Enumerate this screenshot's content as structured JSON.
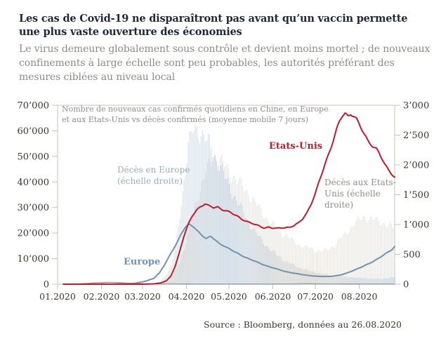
{
  "header": {
    "title": "Les cas de Covid-19 ne disparaîtront pas avant qu’un vaccin permette une plus vaste ouverture des économies",
    "subtitle": "Le virus demeure globalement sous contrôle et devient moins mortel ; de nouveaux confinements à large échelle sont peu probables, les autorités préférant des mesures ciblées au niveau local"
  },
  "source": "Source : Bloomberg, données au 26.08.2020",
  "chart_data": {
    "type": "combo",
    "note": "Nombre de nouveaux cas confirmés quotidiens en Chine, en Europe et aux Etats-Unis vs décès confirmés (moyenne mobile 7 jours)",
    "frame_color": "#c9c0b4",
    "x_axis": {
      "unit": "days since 01.01.2020, data until 26.08.2020",
      "range": [
        0,
        238
      ],
      "tick_days": [
        0,
        31,
        60,
        91,
        121,
        152,
        182,
        213
      ],
      "tick_labels": [
        "01.2020",
        "02.2020",
        "03.2020",
        "04.2020",
        "05.2020",
        "06.2020",
        "07.2020",
        "08.2020"
      ]
    },
    "left_axis": {
      "title": "nouveaux cas confirmés quotidiens",
      "range": [
        0,
        70000
      ],
      "tick_values": [
        0,
        10000,
        20000,
        30000,
        40000,
        50000,
        60000,
        70000
      ],
      "tick_labels": [
        "0",
        "10’000",
        "20’000",
        "30’000",
        "40’000",
        "50’000",
        "60’000",
        "70’000"
      ]
    },
    "right_axis": {
      "title": "décès confirmés (échelle droite)",
      "range": [
        0,
        3000
      ],
      "tick_values": [
        0,
        500,
        1000,
        1500,
        2000,
        2500,
        3000
      ],
      "tick_labels": [
        "0",
        "500",
        "1’000",
        "1’500",
        "2’000",
        "2’500",
        "3’000"
      ]
    },
    "annotations": {
      "us_line": "Etats-Unis",
      "europe_line": "Europe",
      "europe_deaths": "Décès en Europe (échelle droite)",
      "us_deaths": "Décès aux Etats-Unis (échelle droite)"
    },
    "series": [
      {
        "id": "us_deaths_bars",
        "name": "Décès aux Etats-Unis",
        "type": "bar",
        "axis": "right",
        "color": "#e3e0d9",
        "points": [
          [
            66,
            0
          ],
          [
            74,
            15
          ],
          [
            78,
            60
          ],
          [
            82,
            160
          ],
          [
            86,
            350
          ],
          [
            90,
            620
          ],
          [
            93,
            900
          ],
          [
            96,
            1200
          ],
          [
            99,
            1450
          ],
          [
            102,
            1680
          ],
          [
            105,
            1860
          ],
          [
            108,
            2030
          ],
          [
            111,
            2150
          ],
          [
            114,
            2100
          ],
          [
            117,
            2010
          ],
          [
            120,
            1920
          ],
          [
            124,
            1810
          ],
          [
            128,
            1720
          ],
          [
            132,
            1610
          ],
          [
            136,
            1490
          ],
          [
            140,
            1360
          ],
          [
            144,
            1230
          ],
          [
            148,
            1110
          ],
          [
            152,
            1000
          ],
          [
            156,
            915
          ],
          [
            160,
            840
          ],
          [
            164,
            770
          ],
          [
            168,
            705
          ],
          [
            172,
            650
          ],
          [
            176,
            615
          ],
          [
            180,
            585
          ],
          [
            184,
            560
          ],
          [
            188,
            555
          ],
          [
            192,
            590
          ],
          [
            196,
            665
          ],
          [
            200,
            760
          ],
          [
            204,
            860
          ],
          [
            208,
            965
          ],
          [
            212,
            1060
          ],
          [
            216,
            1120
          ],
          [
            220,
            1110
          ],
          [
            224,
            1080
          ],
          [
            228,
            1045
          ],
          [
            232,
            1005
          ],
          [
            236,
            965
          ],
          [
            238,
            945
          ]
        ]
      },
      {
        "id": "europe_deaths_bars",
        "name": "Décès en Europe",
        "type": "bar",
        "axis": "right",
        "color": "#cdd8e1",
        "points": [
          [
            60,
            0
          ],
          [
            68,
            10
          ],
          [
            72,
            40
          ],
          [
            76,
            130
          ],
          [
            80,
            320
          ],
          [
            83,
            620
          ],
          [
            86,
            1150
          ],
          [
            89,
            1750
          ],
          [
            92,
            2300
          ],
          [
            95,
            2560
          ],
          [
            98,
            2600
          ],
          [
            101,
            2540
          ],
          [
            104,
            2440
          ],
          [
            107,
            2330
          ],
          [
            110,
            2190
          ],
          [
            113,
            2040
          ],
          [
            116,
            1890
          ],
          [
            119,
            1740
          ],
          [
            122,
            1590
          ],
          [
            126,
            1410
          ],
          [
            130,
            1240
          ],
          [
            134,
            1070
          ],
          [
            138,
            920
          ],
          [
            142,
            790
          ],
          [
            146,
            680
          ],
          [
            150,
            580
          ],
          [
            154,
            500
          ],
          [
            158,
            430
          ],
          [
            162,
            375
          ],
          [
            166,
            325
          ],
          [
            170,
            285
          ],
          [
            174,
            250
          ],
          [
            178,
            220
          ],
          [
            182,
            198
          ],
          [
            186,
            178
          ],
          [
            190,
            162
          ],
          [
            194,
            148
          ],
          [
            198,
            136
          ],
          [
            202,
            126
          ],
          [
            206,
            117
          ],
          [
            210,
            110
          ],
          [
            214,
            103
          ],
          [
            218,
            98
          ],
          [
            222,
            94
          ],
          [
            226,
            92
          ],
          [
            230,
            95
          ],
          [
            234,
            103
          ],
          [
            238,
            118
          ]
        ]
      },
      {
        "id": "china_cases",
        "name": "Chine",
        "type": "line",
        "axis": "left",
        "color": "#8f9aa4",
        "points": [
          [
            4,
            0
          ],
          [
            15,
            100
          ],
          [
            20,
            250
          ],
          [
            25,
            450
          ],
          [
            30,
            600
          ],
          [
            36,
            700
          ],
          [
            42,
            650
          ],
          [
            48,
            450
          ],
          [
            54,
            280
          ],
          [
            60,
            160
          ],
          [
            70,
            80
          ],
          [
            80,
            50
          ],
          [
            95,
            30
          ],
          [
            120,
            20
          ],
          [
            150,
            25
          ],
          [
            165,
            60
          ],
          [
            172,
            120
          ],
          [
            178,
            150
          ],
          [
            184,
            90
          ],
          [
            195,
            40
          ],
          [
            210,
            30
          ],
          [
            225,
            60
          ],
          [
            238,
            50
          ]
        ]
      },
      {
        "id": "europe_cases",
        "name": "Europe",
        "type": "line",
        "axis": "left",
        "color": "#7292ae",
        "points": [
          [
            4,
            0
          ],
          [
            25,
            0
          ],
          [
            40,
            50
          ],
          [
            50,
            200
          ],
          [
            55,
            400
          ],
          [
            60,
            900
          ],
          [
            64,
            1500
          ],
          [
            68,
            2300
          ],
          [
            72,
            4500
          ],
          [
            76,
            8000
          ],
          [
            80,
            12000
          ],
          [
            84,
            16000
          ],
          [
            87,
            19500
          ],
          [
            90,
            22200
          ],
          [
            93,
            23200
          ],
          [
            96,
            22400
          ],
          [
            99,
            20800
          ],
          [
            102,
            19200
          ],
          [
            105,
            17800
          ],
          [
            108,
            18600
          ],
          [
            111,
            17400
          ],
          [
            114,
            16000
          ],
          [
            117,
            15200
          ],
          [
            120,
            14200
          ],
          [
            124,
            12900
          ],
          [
            128,
            11800
          ],
          [
            132,
            10700
          ],
          [
            136,
            9700
          ],
          [
            140,
            8800
          ],
          [
            144,
            7900
          ],
          [
            148,
            7100
          ],
          [
            152,
            6400
          ],
          [
            156,
            5700
          ],
          [
            160,
            5100
          ],
          [
            164,
            4600
          ],
          [
            168,
            4200
          ],
          [
            172,
            3800
          ],
          [
            176,
            3500
          ],
          [
            180,
            3250
          ],
          [
            184,
            3050
          ],
          [
            188,
            3000
          ],
          [
            192,
            3050
          ],
          [
            196,
            3250
          ],
          [
            200,
            3600
          ],
          [
            204,
            4300
          ],
          [
            208,
            5200
          ],
          [
            212,
            6100
          ],
          [
            216,
            7000
          ],
          [
            220,
            8100
          ],
          [
            224,
            9300
          ],
          [
            228,
            10600
          ],
          [
            232,
            12000
          ],
          [
            236,
            13500
          ],
          [
            238,
            14800
          ]
        ]
      },
      {
        "id": "us_cases",
        "name": "Etats-Unis",
        "type": "line",
        "axis": "left",
        "color": "#c01a2c",
        "points": [
          [
            4,
            0
          ],
          [
            55,
            0
          ],
          [
            62,
            20
          ],
          [
            68,
            120
          ],
          [
            73,
            500
          ],
          [
            77,
            1400
          ],
          [
            80,
            3200
          ],
          [
            83,
            7000
          ],
          [
            86,
            12500
          ],
          [
            89,
            18500
          ],
          [
            92,
            23000
          ],
          [
            95,
            26500
          ],
          [
            98,
            29000
          ],
          [
            101,
            30500
          ],
          [
            104,
            31500
          ],
          [
            107,
            30500
          ],
          [
            110,
            29800
          ],
          [
            113,
            30200
          ],
          [
            116,
            29400
          ],
          [
            119,
            28800
          ],
          [
            122,
            28000
          ],
          [
            125,
            27000
          ],
          [
            128,
            26200
          ],
          [
            131,
            25300
          ],
          [
            134,
            24500
          ],
          [
            137,
            23800
          ],
          [
            140,
            23100
          ],
          [
            143,
            22600
          ],
          [
            146,
            22100
          ],
          [
            149,
            22400
          ],
          [
            152,
            21900
          ],
          [
            155,
            21700
          ],
          [
            158,
            22000
          ],
          [
            161,
            22200
          ],
          [
            164,
            22400
          ],
          [
            167,
            22900
          ],
          [
            170,
            23800
          ],
          [
            173,
            25500
          ],
          [
            176,
            28000
          ],
          [
            179,
            31500
          ],
          [
            182,
            35500
          ],
          [
            185,
            40500
          ],
          [
            188,
            45500
          ],
          [
            191,
            50500
          ],
          [
            194,
            55500
          ],
          [
            197,
            60500
          ],
          [
            199,
            63500
          ],
          [
            201,
            65500
          ],
          [
            203,
            66500
          ],
          [
            205,
            65700
          ],
          [
            207,
            67000
          ],
          [
            209,
            66200
          ],
          [
            211,
            64800
          ],
          [
            213,
            62500
          ],
          [
            215,
            60000
          ],
          [
            217,
            57800
          ],
          [
            219,
            56000
          ],
          [
            221,
            55000
          ],
          [
            223,
            54000
          ],
          [
            225,
            53300
          ],
          [
            227,
            51500
          ],
          [
            229,
            49000
          ],
          [
            231,
            46500
          ],
          [
            233,
            45000
          ],
          [
            235,
            43800
          ],
          [
            237,
            42500
          ],
          [
            238,
            42000
          ]
        ]
      }
    ]
  }
}
